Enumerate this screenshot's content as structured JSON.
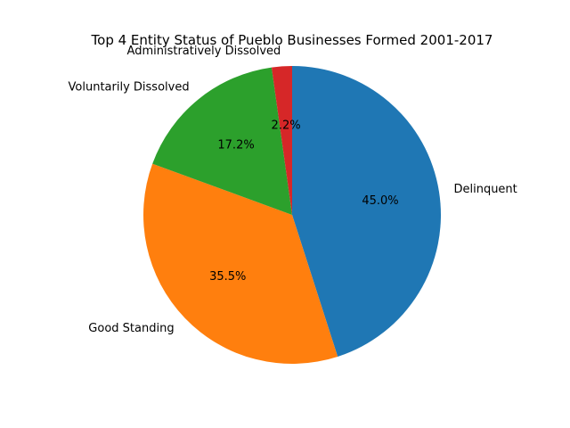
{
  "chart_data": {
    "type": "pie",
    "title": "Top 4 Entity Status of Pueblo Businesses Formed 2001-2017",
    "start_angle_deg": 90,
    "direction": "clockwise",
    "slices": [
      {
        "label": "Delinquent",
        "value": 45.0,
        "pct_label": "45.0%",
        "color": "#1f77b4"
      },
      {
        "label": "Good Standing",
        "value": 35.5,
        "pct_label": "35.5%",
        "color": "#ff7f0e"
      },
      {
        "label": "Voluntarily Dissolved",
        "value": 17.2,
        "pct_label": "17.2%",
        "color": "#2ca02c"
      },
      {
        "label": "Administratively Dissolved",
        "value": 2.2,
        "pct_label": "2.2%",
        "color": "#d62728"
      }
    ]
  }
}
